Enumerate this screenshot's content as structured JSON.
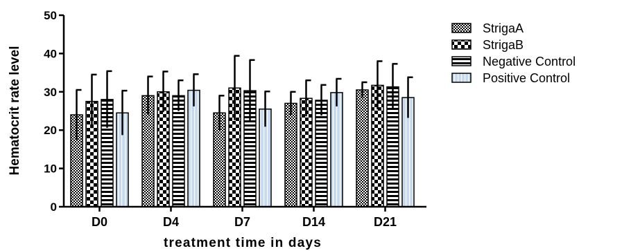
{
  "chart_data": {
    "type": "bar",
    "title": "",
    "xlabel": "treatment time in days",
    "ylabel": "Hematocrit rate level",
    "ylim": [
      0,
      50
    ],
    "yticks": [
      0,
      10,
      20,
      30,
      40,
      50
    ],
    "categories": [
      "D0",
      "D4",
      "D7",
      "D14",
      "D21"
    ],
    "series": [
      {
        "name": "StrigaA",
        "pattern": "dots",
        "values": [
          24,
          29,
          24.5,
          27,
          30.5
        ],
        "errors": [
          6.5,
          5,
          4.5,
          3,
          2
        ]
      },
      {
        "name": "StrigaB",
        "pattern": "checker",
        "values": [
          27.5,
          30,
          31,
          28.3,
          31.7
        ],
        "errors": [
          7,
          5.3,
          8.4,
          4.7,
          6.3
        ]
      },
      {
        "name": "Negative Control",
        "pattern": "horizontal-lines",
        "values": [
          28,
          29,
          30.3,
          27.8,
          31.3
        ],
        "errors": [
          7.4,
          4,
          8,
          4,
          6
        ]
      },
      {
        "name": "Positive Control",
        "pattern": "vertical-lines",
        "values": [
          24.5,
          30.4,
          25.5,
          29.8,
          28.5
        ],
        "errors": [
          5.8,
          4.2,
          4.6,
          3.6,
          5.3
        ]
      }
    ],
    "legend_position": "right",
    "grid": false,
    "colors": {
      "positive_fill": "#c5d9f1",
      "ink": "#000000",
      "background": "#ffffff"
    }
  }
}
